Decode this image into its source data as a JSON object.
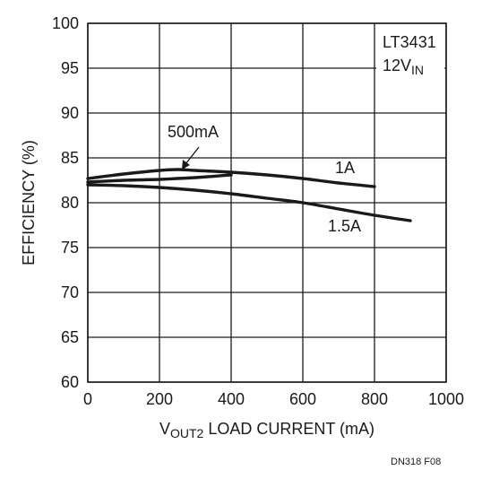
{
  "chart_data": {
    "type": "line",
    "xlabel": {
      "prefix": "V",
      "subscript": "OUT2",
      "rest": " LOAD CURRENT (mA)"
    },
    "ylabel": "EFFICIENCY (%)",
    "xlim": [
      0,
      1000
    ],
    "ylim": [
      60,
      100
    ],
    "x_ticks": [
      "0",
      "200",
      "400",
      "600",
      "800",
      "1000"
    ],
    "y_ticks": [
      "60",
      "65",
      "70",
      "75",
      "80",
      "85",
      "90",
      "95",
      "100"
    ],
    "grid": true,
    "legend_box": {
      "line1": "LT3431",
      "line2_main": "12V",
      "line2_sub": "IN"
    },
    "footnote": "DN318 F08",
    "series": [
      {
        "name": "500mA",
        "x": [
          0,
          100,
          200,
          250,
          300,
          400
        ],
        "y": [
          82.3,
          82.5,
          82.6,
          82.7,
          82.8,
          83.1
        ]
      },
      {
        "name": "1A",
        "x": [
          0,
          100,
          200,
          250,
          300,
          400,
          500,
          600,
          700,
          800
        ],
        "y": [
          82.7,
          83.2,
          83.6,
          83.7,
          83.6,
          83.4,
          83.1,
          82.7,
          82.2,
          81.8
        ]
      },
      {
        "name": "1.5A",
        "x": [
          0,
          100,
          200,
          300,
          400,
          500,
          600,
          700,
          800,
          900
        ],
        "y": [
          82.0,
          81.9,
          81.7,
          81.4,
          81.0,
          80.5,
          80.0,
          79.3,
          78.6,
          78.0
        ]
      }
    ]
  }
}
